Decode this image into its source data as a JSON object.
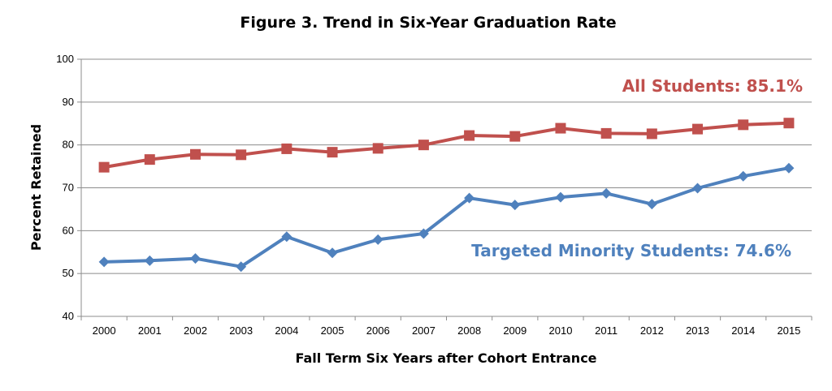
{
  "chart_data": {
    "type": "line",
    "title": "Figure 3. Trend in Six-Year Graduation Rate",
    "xlabel": "Fall Term Six Years after Cohort Entrance",
    "ylabel": "Percent Retained",
    "ylim": [
      40,
      100
    ],
    "yticks": [
      40,
      50,
      60,
      70,
      80,
      90,
      100
    ],
    "grid": true,
    "categories": [
      "2000",
      "2001",
      "2002",
      "2003",
      "2004",
      "2005",
      "2006",
      "2007",
      "2008",
      "2009",
      "2010",
      "2011",
      "2012",
      "2013",
      "2014",
      "2015"
    ],
    "series": [
      {
        "key": "all",
        "name": "All Students",
        "label": "All Students: 85.1%",
        "color": "#c0504d",
        "marker": "square",
        "values": [
          74.8,
          76.6,
          77.8,
          77.7,
          79.1,
          78.3,
          79.2,
          80.0,
          82.2,
          82.0,
          83.9,
          82.7,
          82.6,
          83.7,
          84.7,
          85.1
        ]
      },
      {
        "key": "tms",
        "name": "Targeted Minority Students",
        "label": "Targeted Minority Students: 74.6%",
        "color": "#4f81bd",
        "marker": "diamond",
        "values": [
          52.7,
          53.0,
          53.5,
          51.6,
          58.6,
          54.8,
          57.9,
          59.3,
          67.6,
          66.0,
          67.8,
          68.7,
          66.2,
          69.9,
          72.7,
          74.6
        ]
      }
    ]
  }
}
